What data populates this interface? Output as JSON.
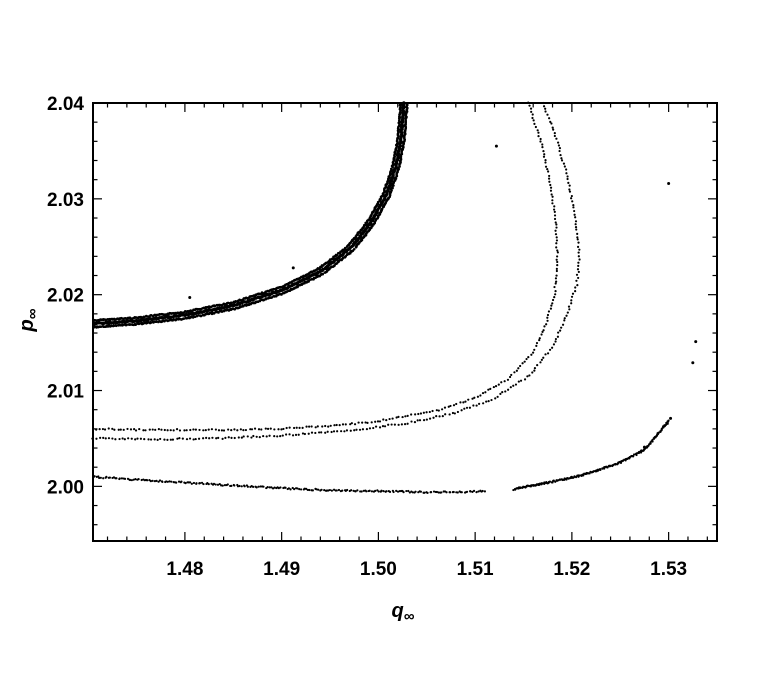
{
  "chart_data": {
    "type": "scatter",
    "title": "",
    "xlabel": "q",
    "xlabel_sub": "∞",
    "ylabel": "p",
    "ylabel_sub": "∞",
    "xlim": [
      1.4705,
      1.535
    ],
    "ylim": [
      1.9943,
      2.04
    ],
    "xticks": [
      1.48,
      1.49,
      1.5,
      1.51,
      1.52,
      1.53
    ],
    "xtick_labels": [
      "1.48",
      "1.49",
      "1.50",
      "1.51",
      "1.52",
      "1.53"
    ],
    "yticks": [
      2.0,
      2.01,
      2.02,
      2.03,
      2.04
    ],
    "ytick_labels": [
      "2.00",
      "2.01",
      "2.02",
      "2.03",
      "2.04"
    ],
    "grid": false,
    "legend": "none",
    "marker_color": "#000000",
    "series": [
      {
        "kind": "dense-band",
        "x": [
          1.4705,
          1.475,
          1.48,
          1.485,
          1.49,
          1.494,
          1.497,
          1.499,
          1.5005,
          1.5015,
          1.502,
          1.5022,
          1.5023
        ],
        "y": [
          2.0173,
          2.0176,
          2.0182,
          2.0192,
          2.0208,
          2.0228,
          2.0252,
          2.0278,
          2.0305,
          2.0335,
          2.0362,
          2.0385,
          2.04
        ]
      },
      {
        "kind": "dotted",
        "x": [
          1.5155,
          1.5168,
          1.5177,
          1.5183,
          1.5185,
          1.5182,
          1.5172,
          1.516,
          1.5135,
          1.51,
          1.506,
          1.5,
          1.495,
          1.49,
          1.485,
          1.48,
          1.475,
          1.4705
        ],
        "y": [
          2.04,
          2.036,
          2.032,
          2.028,
          2.024,
          2.02,
          2.0165,
          2.014,
          2.0113,
          2.0092,
          2.0079,
          2.0068,
          2.0063,
          2.006,
          2.0059,
          2.0059,
          2.0059,
          2.006
        ]
      },
      {
        "kind": "dotted",
        "x": [
          1.517,
          1.5185,
          1.5196,
          1.5204,
          1.5208,
          1.5205,
          1.5195,
          1.518,
          1.5155,
          1.512,
          1.508,
          1.503,
          1.497,
          1.49,
          1.483,
          1.476,
          1.4705
        ],
        "y": [
          2.04,
          2.036,
          2.032,
          2.028,
          2.024,
          2.021,
          2.018,
          2.0145,
          2.0115,
          2.0092,
          2.0077,
          2.0066,
          2.0058,
          2.0053,
          2.005,
          2.0049,
          2.005
        ]
      },
      {
        "kind": "dotted",
        "x": [
          1.4705,
          1.475,
          1.48,
          1.485,
          1.49,
          1.495,
          1.5,
          1.505,
          1.5085,
          1.511
        ],
        "y": [
          2.001,
          2.0007,
          2.0004,
          2.0001,
          1.9998,
          1.9996,
          1.9995,
          1.9994,
          1.9994,
          1.9995
        ]
      },
      {
        "kind": "dotted",
        "x": [
          1.514,
          1.517,
          1.52,
          1.5225,
          1.525,
          1.5275,
          1.53
        ],
        "y": [
          1.9997,
          2.0003,
          2.0009,
          2.0016,
          2.0025,
          2.0038,
          2.0068
        ]
      },
      {
        "kind": "scatter",
        "x": [
          1.53,
          1.5328,
          1.5325,
          1.5302,
          1.5275,
          1.5272,
          1.4912,
          1.4805,
          1.4972,
          1.5122
        ],
        "y": [
          2.0316,
          2.0151,
          2.0129,
          2.0071,
          2.0041,
          2.0037,
          2.0228,
          2.0197,
          2.0245,
          2.0355
        ]
      }
    ]
  }
}
